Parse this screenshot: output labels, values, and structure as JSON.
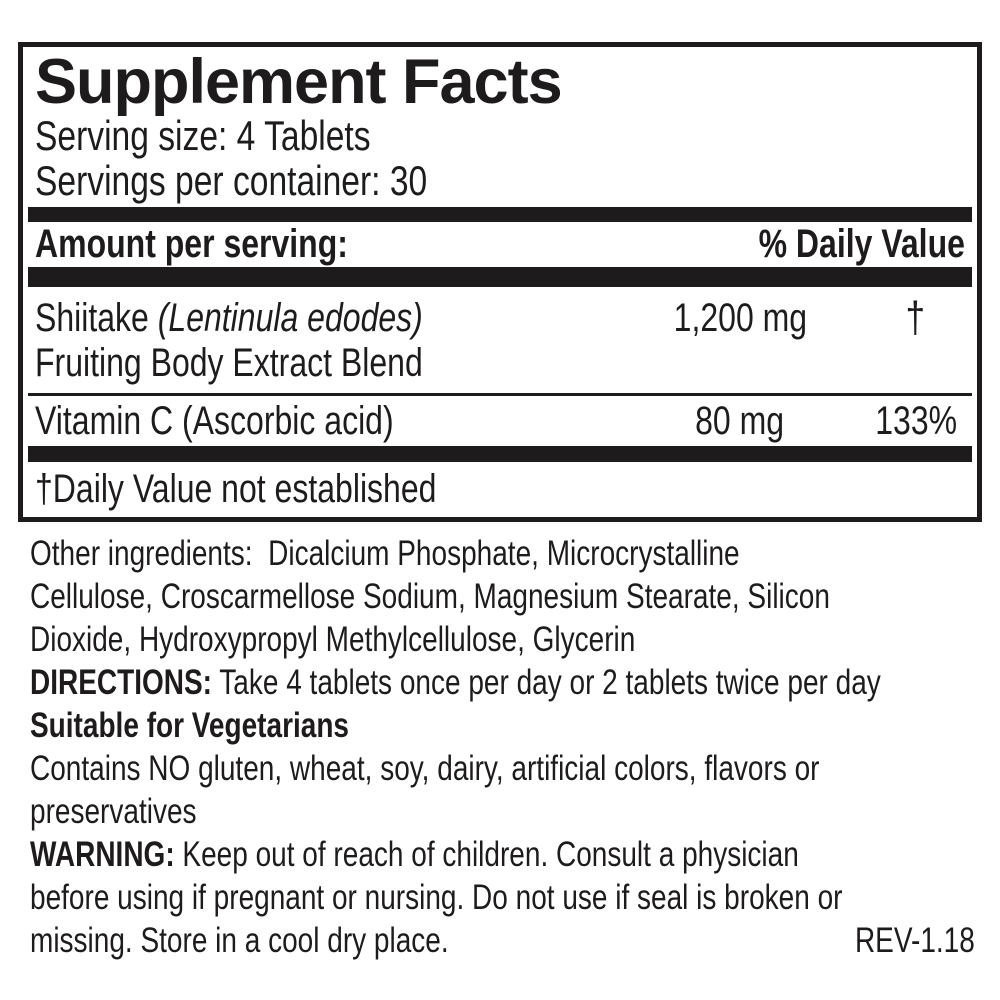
{
  "colors": {
    "ink": "#1e1b1c",
    "background": "#ffffff"
  },
  "panel": {
    "title": "Supplement Facts",
    "serving_size": "Serving size: 4 Tablets",
    "servings_per_container": "Servings per container: 30",
    "header": {
      "amount_label": "Amount per serving:",
      "daily_value_label": "% Daily Value"
    },
    "rows": [
      {
        "name": "Shiitake ",
        "name_scientific": "(Lentinula edodes)",
        "name_line2": "Fruiting Body Extract Blend",
        "amount": "1,200 mg",
        "daily_value": "†"
      },
      {
        "name": "Vitamin C (Ascorbic acid)",
        "amount": "80 mg",
        "daily_value": "133%"
      }
    ],
    "footnote": "†Daily Value not established"
  },
  "details": {
    "other_ingredients_lines": [
      "Other ingredients:  Dicalcium Phosphate, Microcrystalline",
      "Cellulose, Croscarmellose Sodium, Magnesium Stearate, Silicon",
      "Dioxide, Hydroxypropyl Methylcellulose, Glycerin"
    ],
    "directions_label": "DIRECTIONS:",
    "directions_text": " Take 4 tablets once per day or 2 tablets twice per day",
    "suitable": "Suitable for Vegetarians",
    "contains_lines": [
      "Contains NO gluten, wheat, soy, dairy, artificial colors, flavors or",
      "preservatives"
    ],
    "warning_label": "WARNING:",
    "warning_line1": " Keep out of reach of children. Consult a physician",
    "warning_line2": "before using if pregnant or nursing. Do not use if seal is broken or",
    "warning_line3": "missing. Store in a cool dry place.",
    "revision": "REV-1.18"
  }
}
